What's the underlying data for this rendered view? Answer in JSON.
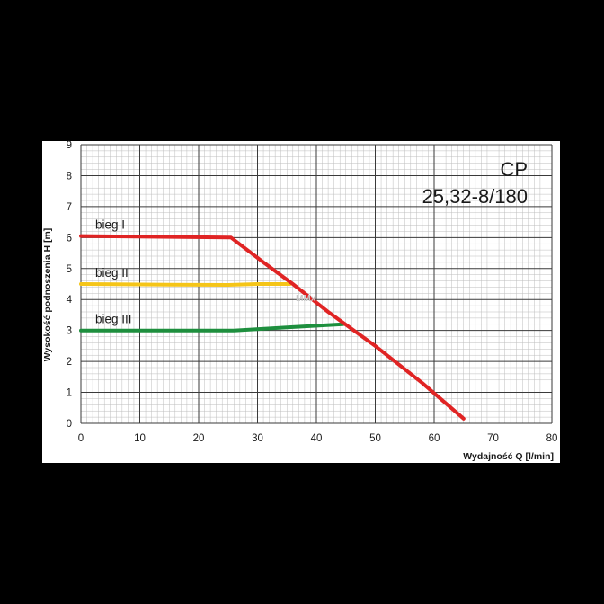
{
  "chart_data": {
    "type": "line",
    "title": "CP",
    "subtitle": "25,32-8/180",
    "xlabel": "Wydajność Q [l/min]",
    "ylabel": "Wysokość podnoszenia H [m]",
    "xlim": [
      0,
      80
    ],
    "ylim": [
      0,
      9
    ],
    "xticks": [
      "0",
      "10",
      "20",
      "30",
      "40",
      "50",
      "60",
      "70",
      "80"
    ],
    "yticks": [
      "0",
      "1",
      "2",
      "3",
      "4",
      "5",
      "6",
      "7",
      "8",
      "9"
    ],
    "grid": true,
    "legend_placement": "inline-left",
    "series": [
      {
        "name": "bieg I",
        "color": "#e02424",
        "x": [
          0,
          25.5,
          31,
          36,
          42,
          50,
          58,
          65
        ],
        "y": [
          6.05,
          6.0,
          5.2,
          4.5,
          3.6,
          2.5,
          1.3,
          0.15
        ]
      },
      {
        "name": "bieg II",
        "color": "#f5c518",
        "x": [
          0,
          15,
          25,
          30,
          35.5
        ],
        "y": [
          4.5,
          4.48,
          4.47,
          4.5,
          4.5
        ]
      },
      {
        "name": "bieg III",
        "color": "#1e8f3e",
        "x": [
          0,
          15,
          26,
          35,
          44.5
        ],
        "y": [
          3.0,
          3.0,
          3.0,
          3.1,
          3.2
        ]
      }
    ]
  },
  "watermark": "MMx",
  "colors": {
    "background": "#000000",
    "panel": "#ffffff",
    "major_grid": "#3a3a3a",
    "minor_grid": "#bdbdbd",
    "text": "#1a1a1a"
  }
}
